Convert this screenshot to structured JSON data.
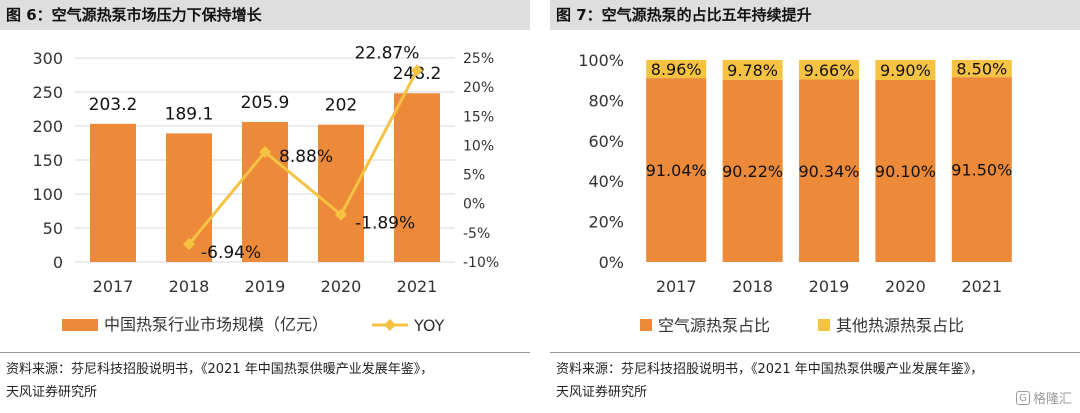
{
  "watermark": {
    "mark": "G",
    "text": "格隆汇"
  },
  "left_panel": {
    "title": "图 6：空气源热泵市场压力下保持增长",
    "source_line1": "资料来源：芬尼科技招股说明书，《2021 年中国热泵供暖产业发展年鉴》，",
    "source_line2": "天风证券研究所"
  },
  "right_panel": {
    "title": "图 7：空气源热泵的占比五年持续提升",
    "source_line1": "资料来源：芬尼科技招股说明书，《2021 年中国热泵供暖产业发展年鉴》，",
    "source_line2": "天风证券研究所"
  },
  "chart_data": [
    {
      "type": "bar",
      "categories": [
        "2017",
        "2018",
        "2019",
        "2020",
        "2021"
      ],
      "series": [
        {
          "name": "中国热泵行业市场规模（亿元）",
          "type": "bar",
          "axis": "left",
          "values": [
            203.2,
            189.1,
            205.9,
            202,
            248.2
          ],
          "labels": [
            "203.2",
            "189.1",
            "205.9",
            "202",
            "248.2"
          ]
        },
        {
          "name": "YOY",
          "type": "line",
          "axis": "right",
          "x": [
            "2018",
            "2019",
            "2020",
            "2021"
          ],
          "values": [
            -6.94,
            8.88,
            -1.89,
            22.87
          ],
          "labels": [
            "-6.94%",
            "8.88%",
            "-1.89%",
            "22.87%"
          ]
        }
      ],
      "ylim": [
        0,
        300
      ],
      "yticks": [
        "0",
        "50",
        "100",
        "150",
        "200",
        "250",
        "300"
      ],
      "y2lim": [
        -10,
        25
      ],
      "y2ticks": [
        "-10%",
        "-5%",
        "0%",
        "5%",
        "10%",
        "15%",
        "20%",
        "25%"
      ],
      "grid": true,
      "legend": "bottom",
      "colors": {
        "bar": "#EC8A3A",
        "line": "#F5C242"
      }
    },
    {
      "type": "bar",
      "stacked": true,
      "categories": [
        "2017",
        "2018",
        "2019",
        "2020",
        "2021"
      ],
      "series": [
        {
          "name": "空气源热泵占比",
          "values": [
            91.04,
            90.22,
            90.34,
            90.1,
            91.5
          ],
          "labels": [
            "91.04%",
            "90.22%",
            "90.34%",
            "90.10%",
            "91.50%"
          ]
        },
        {
          "name": "其他热源热泵占比",
          "values": [
            8.96,
            9.78,
            9.66,
            9.9,
            8.5
          ],
          "labels": [
            "8.96%",
            "9.78%",
            "9.66%",
            "9.90%",
            "8.50%"
          ]
        }
      ],
      "ylim": [
        0,
        100
      ],
      "yticks": [
        "0%",
        "20%",
        "40%",
        "60%",
        "80%",
        "100%"
      ],
      "grid": false,
      "legend": "bottom",
      "colors": {
        "bar": "#EC8A3A",
        "other": "#F5C242"
      }
    }
  ]
}
